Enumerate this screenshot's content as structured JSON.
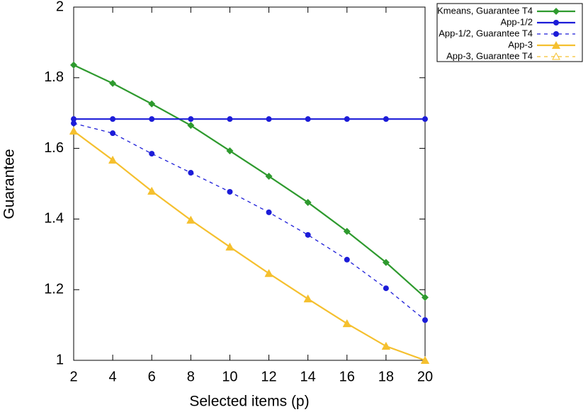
{
  "chart_data": {
    "type": "line",
    "xlabel": "Selected items (p)",
    "ylabel": "Guarantee",
    "x": [
      2,
      4,
      6,
      8,
      10,
      12,
      14,
      16,
      18,
      20
    ],
    "xlim": [
      2,
      20
    ],
    "xticks": [
      2,
      4,
      6,
      8,
      10,
      12,
      14,
      16,
      18,
      20
    ],
    "ylim": [
      1,
      2
    ],
    "yticks": [
      1,
      1.2,
      1.4,
      1.6,
      1.8,
      2
    ],
    "legend": "outside-top-right",
    "series": [
      {
        "name": "Kmeans, Guarantee T4",
        "color": "#2e9a2e",
        "marker": "diamond",
        "dashed": false,
        "values": [
          1.836,
          1.784,
          1.726,
          1.665,
          1.593,
          1.521,
          1.447,
          1.365,
          1.277,
          1.178
        ]
      },
      {
        "name": "App-1/2",
        "color": "#1c1cd8",
        "marker": "circle",
        "dashed": false,
        "values": [
          1.683,
          1.683,
          1.683,
          1.683,
          1.683,
          1.683,
          1.683,
          1.683,
          1.683,
          1.683
        ]
      },
      {
        "name": "App-1/2, Guarantee T4",
        "color": "#1c1cd8",
        "marker": "circle",
        "dashed": true,
        "values": [
          1.671,
          1.643,
          1.585,
          1.531,
          1.477,
          1.419,
          1.355,
          1.285,
          1.204,
          1.114
        ]
      },
      {
        "name": "App-3",
        "color": "#f5c02f",
        "marker": "triangle",
        "dashed": false,
        "values": [
          1.649,
          1.567,
          1.479,
          1.397,
          1.321,
          1.246,
          1.174,
          1.104,
          1.04,
          1.0
        ]
      },
      {
        "name": "App-3, Guarantee T4",
        "color": "#f5c02f",
        "marker": "triangle-open",
        "dashed": true,
        "values": [
          1.649,
          1.567,
          1.479,
          1.397,
          1.321,
          1.246,
          1.174,
          1.104,
          1.04,
          1.0
        ]
      }
    ]
  }
}
